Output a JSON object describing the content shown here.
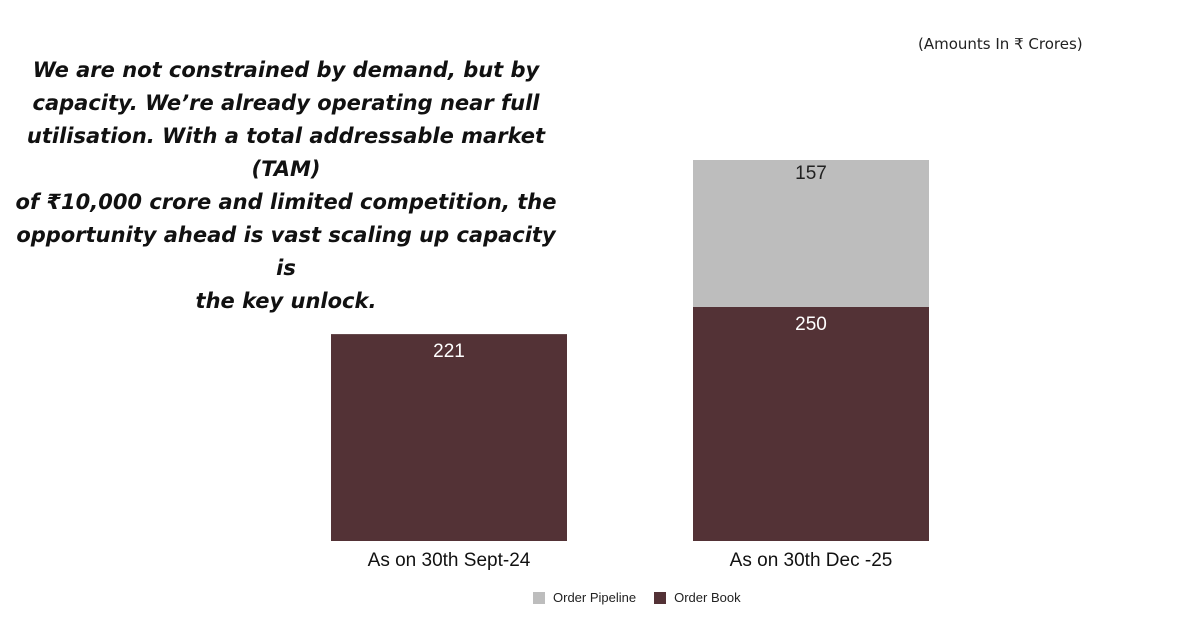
{
  "quote": {
    "lines": [
      "We are not constrained by demand, but by",
      "capacity. We’re already operating near full",
      "utilisation. With a total addressable market (TAM)",
      "of ₹10,000 crore and limited competition, the",
      "opportunity ahead is vast scaling up capacity is",
      "the key unlock."
    ]
  },
  "unit_note": "(Amounts In ₹ Crores)",
  "chart_data": {
    "type": "bar",
    "stacked": true,
    "categories": [
      "As on 30th Sept-24",
      "As on 30th Dec -25"
    ],
    "series": [
      {
        "name": "Order Book",
        "values": [
          221,
          250
        ],
        "color": "#533236",
        "label_color": "#ffffff"
      },
      {
        "name": "Order Pipeline",
        "values": [
          0,
          157
        ],
        "color": "#bdbdbd",
        "label_color": "#222222"
      }
    ],
    "legend_order": [
      "Order Pipeline",
      "Order Book"
    ],
    "ylim": [
      0,
      407
    ],
    "grid": false,
    "legend_position": "bottom"
  }
}
